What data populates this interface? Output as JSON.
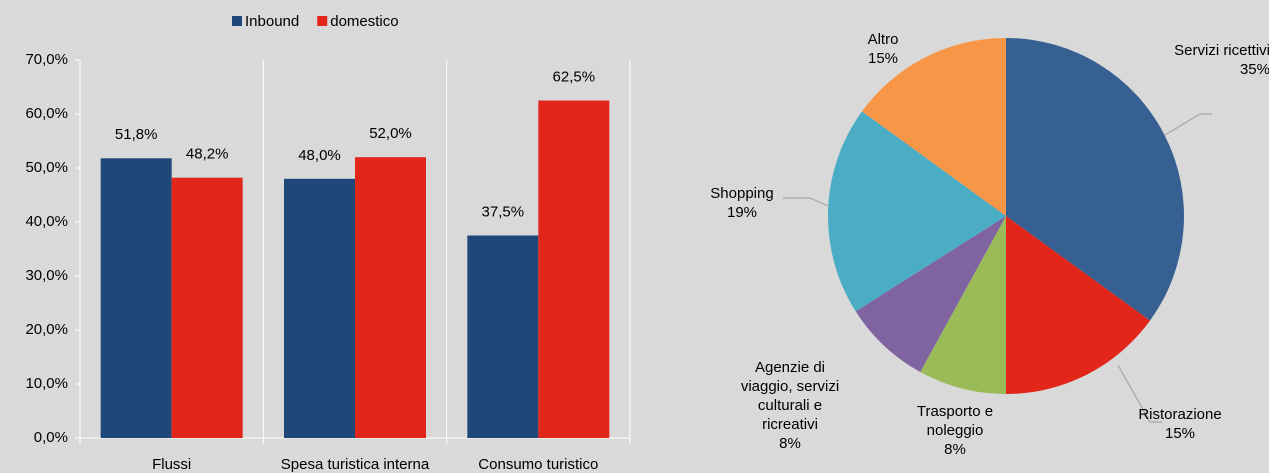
{
  "chart_data": [
    {
      "type": "bar",
      "categories": [
        "Flussi",
        "Spesa turistica interna",
        "Consumo turistico"
      ],
      "series": [
        {
          "name": "Inbound",
          "color": "#1f4777",
          "values": [
            51.8,
            48.0,
            37.5
          ],
          "value_labels": [
            "51,8%",
            "48,0%",
            "37,5%"
          ]
        },
        {
          "name": "domestico",
          "color": "#e2261a",
          "values": [
            48.2,
            52.0,
            62.5
          ],
          "value_labels": [
            "48,2%",
            "52,0%",
            "62,5%"
          ]
        }
      ],
      "ylim": [
        0,
        70
      ],
      "yticks": [
        {
          "value": 0,
          "label": "0,0%"
        },
        {
          "value": 10,
          "label": "10,0%"
        },
        {
          "value": 20,
          "label": "20,0%"
        },
        {
          "value": 30,
          "label": "30,0%"
        },
        {
          "value": 40,
          "label": "40,0%"
        },
        {
          "value": 50,
          "label": "50,0%"
        },
        {
          "value": 60,
          "label": "60,0%"
        },
        {
          "value": 70,
          "label": "70,0%"
        }
      ],
      "legend": "top"
    },
    {
      "type": "pie",
      "categories": [
        "Servizi ricettivi",
        "Ristorazione",
        "Trasporto e noleggio",
        "Agenzie di viaggio, servizi culturali e ricreativi",
        "Shopping",
        "Altro"
      ],
      "values": [
        35,
        15,
        8,
        8,
        19,
        15
      ],
      "value_labels": [
        "35%",
        "15%",
        "8%",
        "8%",
        "19%",
        "15%"
      ],
      "colors": [
        "#376092",
        "#e2261a",
        "#9bbb59",
        "#8064a2",
        "#4bacc6",
        "#f79646"
      ]
    }
  ]
}
